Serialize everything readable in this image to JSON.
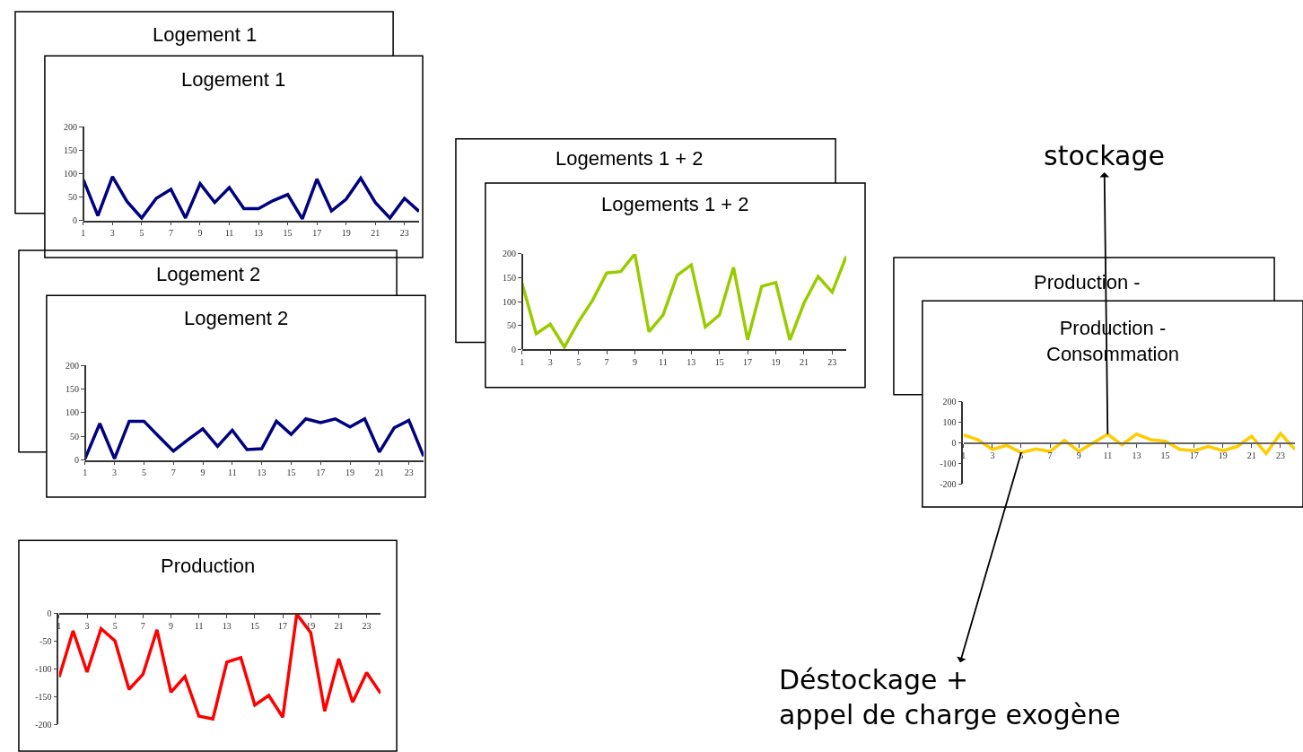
{
  "chart_data": [
    {
      "type": "line",
      "title": "Logement 1",
      "annotations": [
        "Logement 1"
      ],
      "x": [
        1,
        2,
        3,
        4,
        5,
        6,
        7,
        8,
        9,
        10,
        11,
        12,
        13,
        14,
        15,
        16,
        17,
        18,
        19,
        20,
        21,
        22,
        23,
        24
      ],
      "xlim": [
        1,
        24
      ],
      "xticks": [
        1,
        3,
        5,
        7,
        9,
        11,
        13,
        15,
        17,
        19,
        21,
        23
      ],
      "ylim": [
        0,
        200
      ],
      "yticks": [
        0,
        50,
        100,
        150,
        200
      ],
      "series": [
        {
          "color": "#000080",
          "values": [
            87,
            10,
            93,
            40,
            5,
            47,
            66,
            5,
            78,
            38,
            70,
            25,
            25,
            42,
            55,
            3,
            88,
            20,
            45,
            90,
            38,
            5,
            47,
            19
          ]
        }
      ]
    },
    {
      "type": "line",
      "title": "Logement 2",
      "annotations": [
        "Logement 2"
      ],
      "x": [
        1,
        2,
        3,
        4,
        5,
        6,
        7,
        8,
        9,
        10,
        11,
        12,
        13,
        14,
        15,
        16,
        17,
        18,
        19,
        20,
        21,
        22,
        23,
        24
      ],
      "xlim": [
        1,
        24
      ],
      "xticks": [
        1,
        3,
        5,
        7,
        9,
        11,
        13,
        15,
        17,
        19,
        21,
        23
      ],
      "ylim": [
        0,
        200
      ],
      "yticks": [
        0,
        50,
        100,
        150,
        200
      ],
      "series": [
        {
          "color": "#000080",
          "values": [
            3,
            77,
            3,
            82,
            82,
            50,
            19,
            43,
            66,
            29,
            63,
            22,
            24,
            82,
            54,
            87,
            79,
            87,
            70,
            87,
            17,
            68,
            84,
            8
          ]
        }
      ]
    },
    {
      "type": "line",
      "title": "Logements 1 + 2",
      "annotations": [
        "Logements 1 + 2"
      ],
      "x": [
        1,
        2,
        3,
        4,
        5,
        6,
        7,
        8,
        9,
        10,
        11,
        12,
        13,
        14,
        15,
        16,
        17,
        18,
        19,
        20,
        21,
        22,
        23,
        24
      ],
      "xlim": [
        1,
        24
      ],
      "xticks": [
        1,
        3,
        5,
        7,
        9,
        11,
        13,
        15,
        17,
        19,
        21,
        23
      ],
      "ylim": [
        0,
        200
      ],
      "yticks": [
        0,
        50,
        100,
        150,
        200
      ],
      "series": [
        {
          "color": "#99cc00",
          "values": [
            138,
            33,
            53,
            5,
            58,
            103,
            160,
            163,
            200,
            37,
            72,
            155,
            177,
            47,
            72,
            172,
            20,
            132,
            140,
            20,
            97,
            153,
            120,
            195
          ]
        }
      ]
    },
    {
      "type": "line",
      "title": "Production",
      "x": [
        1,
        2,
        3,
        4,
        5,
        6,
        7,
        8,
        9,
        10,
        11,
        12,
        13,
        14,
        15,
        16,
        17,
        18,
        19,
        20,
        21,
        22,
        23,
        24
      ],
      "xlim": [
        1,
        24
      ],
      "xticks": [
        1,
        3,
        5,
        7,
        9,
        11,
        13,
        15,
        17,
        19,
        21,
        23
      ],
      "ylim": [
        -200,
        0
      ],
      "yticks": [
        -200,
        -150,
        -100,
        -50,
        0
      ],
      "series": [
        {
          "color": "#ff0000",
          "values": [
            -115,
            -32,
            -106,
            -28,
            -50,
            -137,
            -110,
            -30,
            -142,
            -114,
            -185,
            -190,
            -88,
            -80,
            -165,
            -148,
            -187,
            -2,
            -35,
            -176,
            -82,
            -160,
            -107,
            -144
          ]
        }
      ]
    },
    {
      "type": "line",
      "title": "Production -\nConsommation",
      "annotations": [
        "Production -",
        {
          "text": "stockage",
          "x": 11,
          "y": 42
        },
        {
          "text": "Déstockage +\nappel de charge exogène",
          "x": 5,
          "y": -48
        }
      ],
      "x": [
        1,
        2,
        3,
        4,
        5,
        6,
        7,
        8,
        9,
        10,
        11,
        12,
        13,
        14,
        15,
        16,
        17,
        18,
        19,
        20,
        21,
        22,
        23,
        24
      ],
      "xlim": [
        1,
        24
      ],
      "xticks": [
        1,
        3,
        5,
        7,
        9,
        11,
        13,
        15,
        17,
        19,
        21,
        23
      ],
      "ylim": [
        -200,
        200
      ],
      "yticks": [
        -200,
        -100,
        0,
        100,
        200
      ],
      "series": [
        {
          "color": "#ffcc00",
          "values": [
            38,
            15,
            -32,
            -13,
            -48,
            -30,
            -42,
            12,
            -42,
            0,
            42,
            -10,
            42,
            15,
            8,
            -32,
            -38,
            -18,
            -38,
            -18,
            32,
            -52,
            45,
            -32
          ]
        }
      ]
    }
  ]
}
